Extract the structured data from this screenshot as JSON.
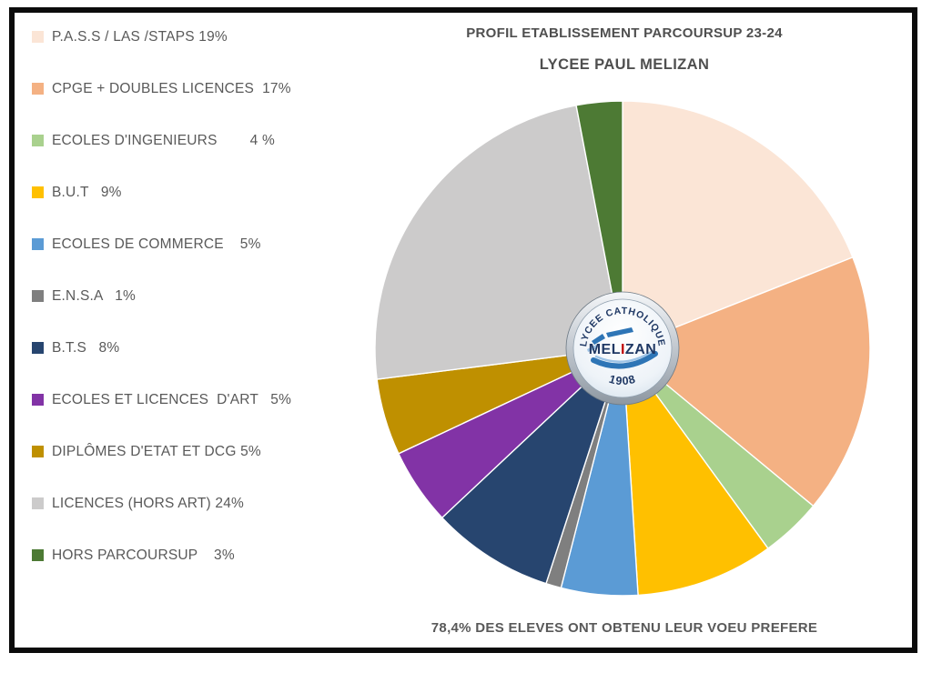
{
  "chart_data": {
    "type": "pie",
    "title": "PROFIL ETABLISSEMENT PARCOURSUP 23-24",
    "subtitle": "LYCEE PAUL MELIZAN",
    "caption": "78,4% DES ELEVES ONT OBTENU LEUR VOEU PREFERE",
    "legend_position": "left",
    "start_angle_deg": 0,
    "direction": "clockwise",
    "unit": "%",
    "categories": [
      "P.A.S.S / LAS /STAPS",
      "CPGE + DOUBLES LICENCES",
      "ECOLES D'INGENIEURS",
      "B.U.T",
      "ECOLES DE COMMERCE",
      "E.N.S.A",
      "B.T.S",
      "ECOLES ET LICENCES D'ART",
      "DIPLÔMES D'ETAT ET DCG",
      "LICENCES (HORS ART)",
      "HORS PARCOURSUP"
    ],
    "values": [
      19,
      17,
      4,
      9,
      5,
      1,
      8,
      5,
      5,
      24,
      3
    ],
    "colors": [
      "#FBE5D6",
      "#F4B183",
      "#A9D18E",
      "#FFC000",
      "#5B9BD5",
      "#7F7F7F",
      "#27456F",
      "#8233A6",
      "#BF9000",
      "#CCCBCB",
      "#4D7A34"
    ],
    "legend_labels": [
      "P.A.S.S / LAS /STAPS 19%",
      "CPGE + DOUBLES LICENCES  17%",
      "ECOLES D'INGENIEURS        4 %",
      "B.U.T   9%",
      "ECOLES DE COMMERCE    5%",
      "E.N.S.A   1%",
      "B.T.S   8%",
      "ECOLES ET LICENCES  D'ART   5%",
      "DIPLÔMES D'ETAT ET DCG 5%",
      "LICENCES (HORS ART) 24%",
      "HORS PARCOURSUP    3%"
    ]
  },
  "center_badge": {
    "line_top": "LYCEE CATHOLIQUE",
    "name_parts": {
      "a": "MEL",
      "b": "I",
      "c": "ZAN"
    },
    "year": "1908",
    "navy_color": "#1F3864",
    "red_color": "#C00000",
    "swoosh_color": "#2E75B6",
    "swoosh_light_color": "#9DC3E6"
  },
  "frame": {
    "border_color": "#0b0b0b",
    "background": "#ffffff"
  }
}
